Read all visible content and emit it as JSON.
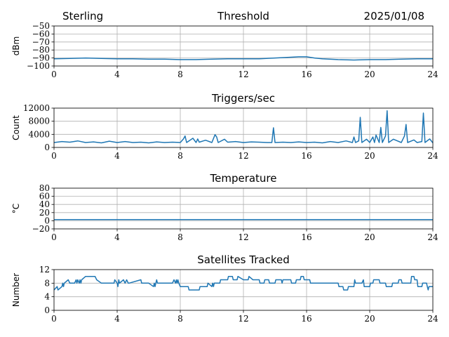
{
  "header": {
    "station": "Sterling",
    "date": "2025/01/08"
  },
  "style": {
    "line_color": "#1f77b4",
    "grid_color": "#b0b0b0"
  },
  "chart_data": [
    {
      "id": "threshold",
      "type": "line",
      "title": "Threshold",
      "ylabel": "dBm",
      "xlim": [
        0,
        24
      ],
      "ylim": [
        -100,
        -50
      ],
      "xticks": [
        0,
        4,
        8,
        12,
        16,
        20,
        24
      ],
      "yticks": [
        -100,
        -90,
        -80,
        -70,
        -60,
        -50
      ],
      "ytick_labels": [
        "−100",
        "−90",
        "−80",
        "−70",
        "−60",
        "−50"
      ],
      "grid": true,
      "series": [
        {
          "x": [
            0,
            1,
            2,
            3,
            4,
            5,
            6,
            7,
            8,
            9,
            10,
            11,
            12,
            13,
            14,
            15,
            15.5,
            16,
            16.5,
            17,
            18,
            19,
            20,
            21,
            22,
            23,
            24
          ],
          "y": [
            -91,
            -90.5,
            -90,
            -90.5,
            -91,
            -91,
            -91.5,
            -91.5,
            -92,
            -92,
            -91.5,
            -91,
            -91,
            -91,
            -90,
            -89,
            -88.5,
            -88.5,
            -90,
            -91,
            -92,
            -92.5,
            -92,
            -92,
            -91.5,
            -91,
            -91
          ]
        }
      ]
    },
    {
      "id": "triggers",
      "type": "line",
      "title": "Triggers/sec",
      "ylabel": "Count",
      "xlim": [
        0,
        24
      ],
      "ylim": [
        0,
        12000
      ],
      "xticks": [
        0,
        4,
        8,
        12,
        16,
        20,
        24
      ],
      "yticks": [
        0,
        4000,
        8000,
        12000
      ],
      "ytick_labels": [
        "0",
        "4000",
        "8000",
        "12000"
      ],
      "grid": true,
      "series": [
        {
          "x": [
            0,
            0.5,
            1,
            1.5,
            2,
            2.5,
            3,
            3.5,
            4,
            4.5,
            5,
            5.5,
            6,
            6.5,
            7,
            7.5,
            8,
            8.2,
            8.3,
            8.4,
            8.8,
            9,
            9.1,
            9.2,
            9.6,
            10,
            10.2,
            10.3,
            10.4,
            10.8,
            11,
            11.5,
            12,
            12.5,
            13,
            13.5,
            13.8,
            13.9,
            14,
            14.5,
            15,
            15.5,
            16,
            16.5,
            17,
            17.5,
            18,
            18.5,
            18.9,
            19,
            19.1,
            19.3,
            19.4,
            19.5,
            19.8,
            20,
            20.2,
            20.3,
            20.4,
            20.6,
            20.7,
            20.8,
            21,
            21.1,
            21.2,
            21.5,
            22,
            22.2,
            22.3,
            22.4,
            22.8,
            23,
            23.3,
            23.4,
            23.5,
            23.8,
            24
          ],
          "y": [
            1500,
            1800,
            1600,
            2000,
            1500,
            1700,
            1400,
            1900,
            1500,
            1800,
            1500,
            1600,
            1400,
            1700,
            1500,
            1600,
            1500,
            2600,
            3500,
            1500,
            2800,
            1500,
            2600,
            1600,
            2200,
            1500,
            3900,
            3200,
            1500,
            2500,
            1600,
            1800,
            1500,
            1700,
            1600,
            1500,
            1500,
            6000,
            1500,
            1600,
            1500,
            1700,
            1500,
            1600,
            1400,
            1800,
            1500,
            2000,
            1500,
            3200,
            1500,
            2000,
            9200,
            1500,
            2500,
            1500,
            3200,
            1500,
            3800,
            1500,
            6100,
            1500,
            3500,
            11200,
            1500,
            2500,
            1500,
            3500,
            7000,
            1500,
            2300,
            1500,
            1800,
            10500,
            1500,
            2600,
            1400
          ]
        }
      ]
    },
    {
      "id": "temperature",
      "type": "line",
      "title": "Temperature",
      "ylabel": "°C",
      "xlim": [
        0,
        24
      ],
      "ylim": [
        -20,
        80
      ],
      "xticks": [
        0,
        4,
        8,
        12,
        16,
        20,
        24
      ],
      "yticks": [
        -20,
        0,
        20,
        40,
        60,
        80
      ],
      "ytick_labels": [
        "−20",
        "0",
        "20",
        "40",
        "60",
        "80"
      ],
      "grid": true,
      "series": [
        {
          "x": [
            0,
            24
          ],
          "y": [
            3,
            3
          ]
        }
      ]
    },
    {
      "id": "satellites",
      "type": "line",
      "title": "Satellites Tracked",
      "ylabel": "Number",
      "xlim": [
        0,
        24
      ],
      "ylim": [
        0,
        12
      ],
      "xticks": [
        0,
        4,
        8,
        12,
        16,
        20,
        24
      ],
      "yticks": [
        0,
        4,
        8,
        12
      ],
      "ytick_labels": [
        "0",
        "4",
        "8",
        "12"
      ],
      "grid": true,
      "series": [
        {
          "x": [
            0,
            0.2,
            0.25,
            0.5,
            0.55,
            0.6,
            0.65,
            0.9,
            1.0,
            1.3,
            1.4,
            1.45,
            1.5,
            1.6,
            1.65,
            1.7,
            1.75,
            2.0,
            2.6,
            2.7,
            3.0,
            3.8,
            3.85,
            4.0,
            4.05,
            4.1,
            4.15,
            4.4,
            4.5,
            4.6,
            4.7,
            4.75,
            5.5,
            5.55,
            6.0,
            6.3,
            6.35,
            6.4,
            6.45,
            6.5,
            6.55,
            7.0,
            7.5,
            7.6,
            7.7,
            7.75,
            7.8,
            7.85,
            7.9,
            8.0,
            8.5,
            8.55,
            9.2,
            9.25,
            9.7,
            9.75,
            10.0,
            10.05,
            10.1,
            10.15,
            10.5,
            10.55,
            11.0,
            11.05,
            11.3,
            11.35,
            11.6,
            11.65,
            12.0,
            12.3,
            12.35,
            12.6,
            12.65,
            13.0,
            13.05,
            13.3,
            13.35,
            13.6,
            13.65,
            14.0,
            14.05,
            14.4,
            14.45,
            14.5,
            15.0,
            15.05,
            15.3,
            15.35,
            15.6,
            15.65,
            15.8,
            15.85,
            16.2,
            16.25,
            17.0,
            17.05,
            18.0,
            18.05,
            18.3,
            18.35,
            18.6,
            18.65,
            19.0,
            19.05,
            19.1,
            19.5,
            19.6,
            19.65,
            20.0,
            20.05,
            20.2,
            20.25,
            20.6,
            20.65,
            21.0,
            21.05,
            21.4,
            21.45,
            21.8,
            21.85,
            22.0,
            22.05,
            22.6,
            22.65,
            22.8,
            22.85,
            23.0,
            23.05,
            23.3,
            23.35,
            23.6,
            23.65,
            23.7,
            23.75,
            24
          ],
          "y": [
            6,
            7,
            6,
            7,
            8,
            7,
            8,
            9,
            8,
            8,
            9,
            8,
            9,
            8,
            9,
            8,
            9,
            10,
            10,
            9,
            8,
            8,
            9,
            8,
            7,
            9,
            8,
            9,
            8,
            9,
            8,
            8,
            9,
            8,
            8,
            7,
            8,
            7,
            8,
            9,
            8,
            8,
            8,
            9,
            8,
            9,
            8,
            9,
            8,
            7,
            7,
            6,
            6,
            7,
            7,
            8,
            7,
            8,
            7,
            8,
            8,
            9,
            9,
            10,
            10,
            9,
            9,
            10,
            9,
            9,
            10,
            9,
            9,
            9,
            8,
            8,
            9,
            9,
            8,
            8,
            9,
            9,
            8,
            9,
            9,
            8,
            8,
            9,
            9,
            10,
            10,
            9,
            9,
            8,
            8,
            8,
            8,
            7,
            7,
            6,
            6,
            7,
            7,
            9,
            8,
            8,
            9,
            7,
            7,
            8,
            8,
            9,
            9,
            8,
            8,
            7,
            7,
            8,
            8,
            9,
            9,
            8,
            8,
            10,
            10,
            9,
            9,
            7,
            7,
            8,
            8,
            7,
            6,
            7,
            7
          ]
        }
      ]
    }
  ]
}
